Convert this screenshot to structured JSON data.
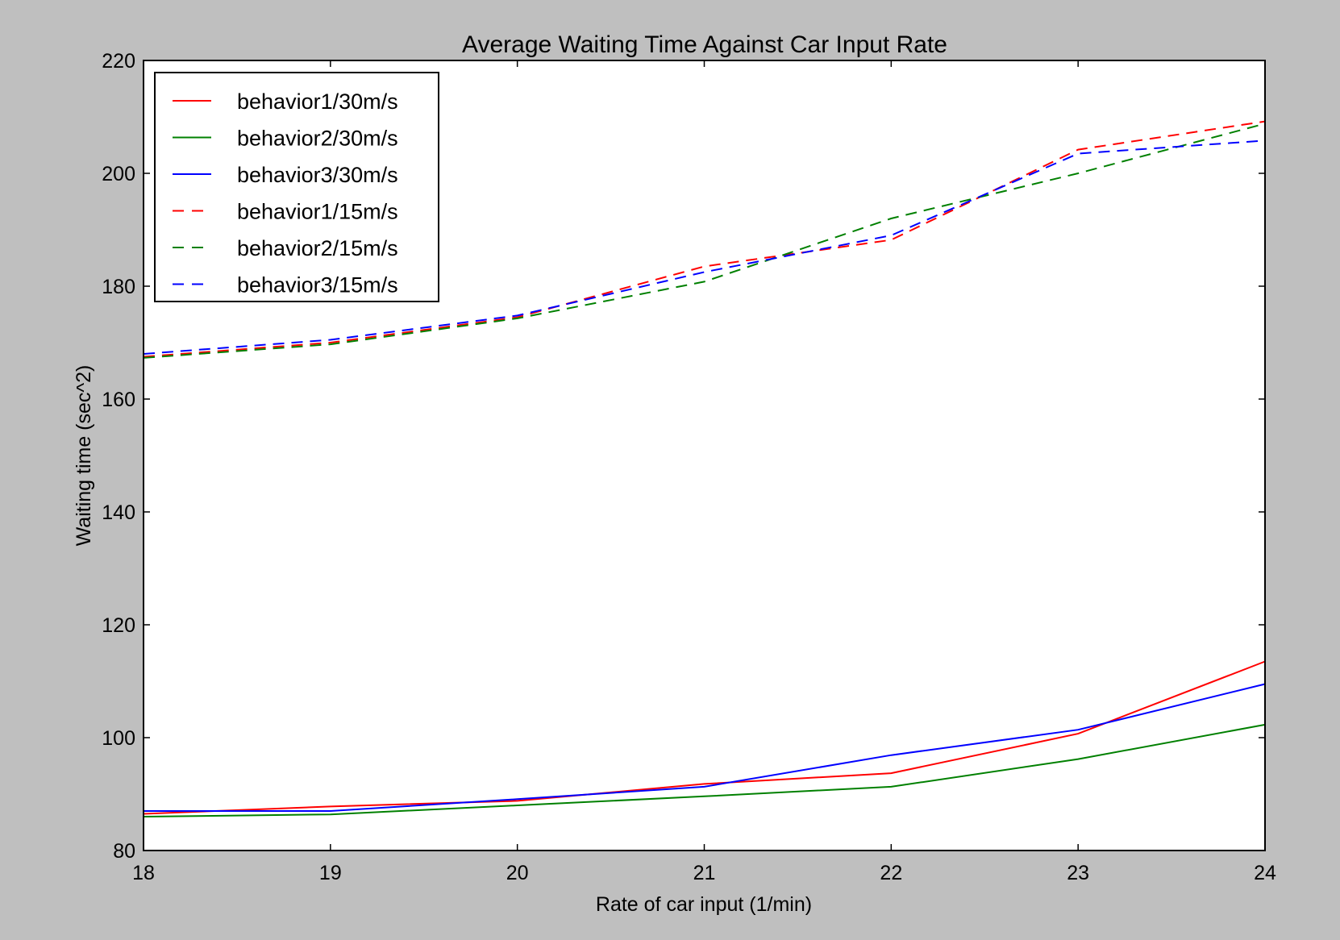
{
  "colors": {
    "figure_background": "#bfbfbf",
    "axes_background": "#ffffff",
    "red": "#ff0000",
    "green": "#008000",
    "blue": "#0000ff"
  },
  "chart_data": {
    "type": "line",
    "title": "Average Waiting Time Against Car Input Rate",
    "xlabel": "Rate of car input (1/min)",
    "ylabel": "Waiting time (sec^2)",
    "xlim": [
      18,
      24
    ],
    "ylim": [
      80,
      220
    ],
    "x_ticks": [
      "18",
      "19",
      "20",
      "21",
      "22",
      "23",
      "24"
    ],
    "y_ticks": [
      "80",
      "100",
      "120",
      "140",
      "160",
      "180",
      "200",
      "220"
    ],
    "grid": false,
    "legend_position": "top-left",
    "x": [
      18,
      19,
      20,
      21,
      22,
      23,
      24
    ],
    "series": [
      {
        "name": "behavior1/30m/s",
        "color": "red",
        "linestyle": "solid",
        "values": [
          86.5,
          87.8,
          88.8,
          91.8,
          93.7,
          100.7,
          113.5
        ]
      },
      {
        "name": "behavior2/30m/s",
        "color": "green",
        "linestyle": "solid",
        "values": [
          86.0,
          86.4,
          88.0,
          89.6,
          91.3,
          96.2,
          102.3
        ]
      },
      {
        "name": "behavior3/30m/s",
        "color": "blue",
        "linestyle": "solid",
        "values": [
          87.0,
          87.0,
          89.1,
          91.3,
          96.9,
          101.4,
          109.5
        ]
      },
      {
        "name": "behavior1/15m/s",
        "color": "red",
        "linestyle": "dashed",
        "values": [
          167.5,
          170.0,
          174.5,
          183.5,
          188.2,
          204.2,
          209.2
        ]
      },
      {
        "name": "behavior2/15m/s",
        "color": "green",
        "linestyle": "dashed",
        "values": [
          167.3,
          169.7,
          174.3,
          180.8,
          192.0,
          200.0,
          208.8
        ]
      },
      {
        "name": "behavior3/15m/s",
        "color": "blue",
        "linestyle": "dashed",
        "values": [
          168.0,
          170.5,
          174.8,
          182.5,
          189.0,
          203.5,
          205.8
        ]
      }
    ]
  }
}
